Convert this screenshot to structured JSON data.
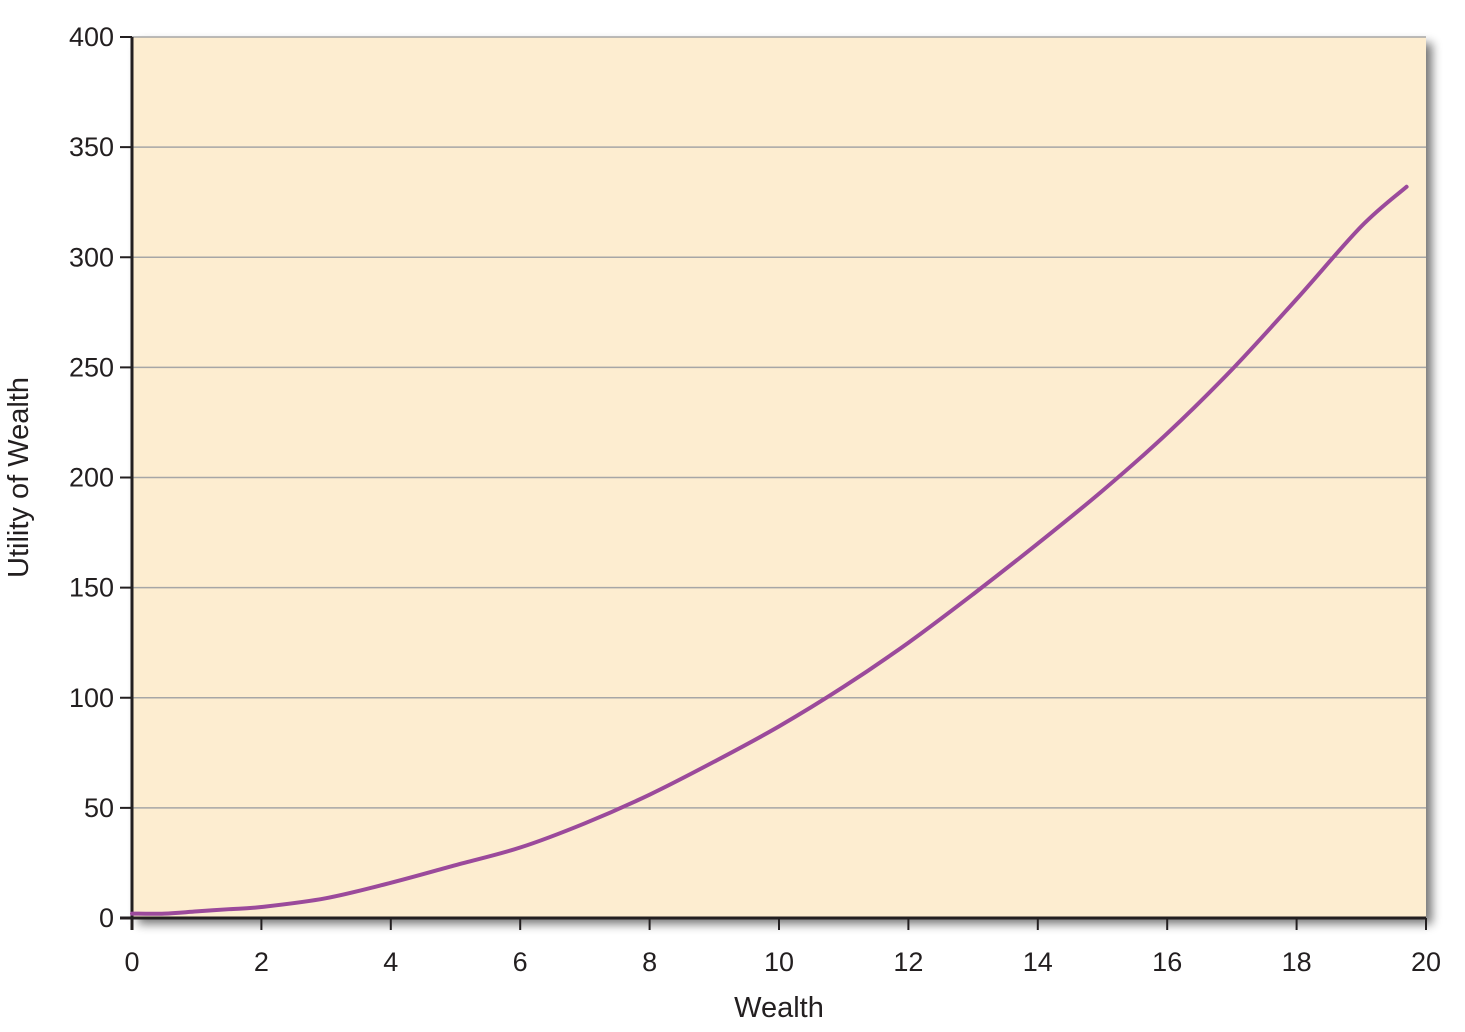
{
  "colors": {
    "plot_background": "#fdedd0",
    "gridline": "#a6a6a6",
    "axis": "#231f20",
    "curve": "#9b4a9b",
    "shadow": "#8a8a8a"
  },
  "chart_data": {
    "type": "line",
    "title": "",
    "xlabel": "Wealth",
    "ylabel": "Utility of Wealth",
    "xlim": [
      0,
      20
    ],
    "ylim": [
      0,
      400
    ],
    "grid": true,
    "legend": "none",
    "x_ticks": [
      0,
      2,
      4,
      6,
      8,
      10,
      12,
      14,
      16,
      18,
      20
    ],
    "y_ticks": [
      0,
      50,
      100,
      150,
      200,
      250,
      300,
      350,
      400
    ],
    "x_tick_labels": [
      "0",
      "2",
      "4",
      "6",
      "8",
      "10",
      "12",
      "14",
      "16",
      "18",
      "20"
    ],
    "y_tick_labels": [
      "0",
      "50",
      "100",
      "150",
      "200",
      "250",
      "300",
      "350",
      "400"
    ],
    "series": [
      {
        "x": [
          0,
          0.5,
          1,
          1.5,
          2,
          3,
          4,
          5,
          6,
          7,
          8,
          9,
          10,
          11,
          12,
          13,
          14,
          15,
          16,
          17,
          18,
          19,
          19.7
        ],
        "y": [
          2,
          2,
          3,
          4,
          5,
          9,
          16,
          24,
          32,
          43,
          56,
          71,
          87,
          105,
          125,
          147,
          170,
          194,
          220,
          249,
          281,
          314,
          332
        ]
      }
    ]
  }
}
